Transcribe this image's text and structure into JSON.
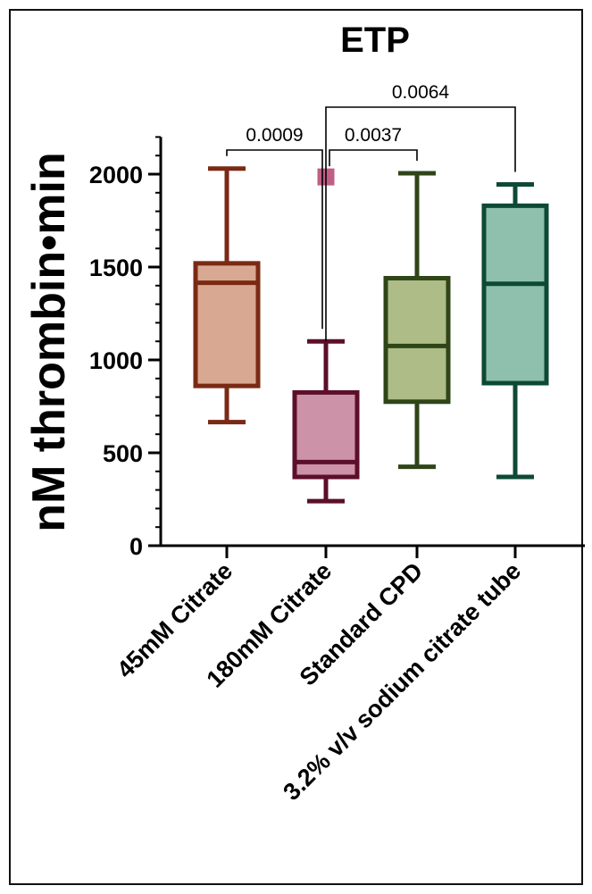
{
  "chart_data": {
    "type": "box",
    "title": "ETP",
    "xlabel": "",
    "ylabel": "nM thrombin•min",
    "ylim": [
      0,
      2200
    ],
    "yticks": [
      0,
      500,
      1000,
      1500,
      2000
    ],
    "grid": false,
    "categories": [
      "45mM Citrate",
      "180mM Citrate",
      "Standard CPD",
      "3.2% v/v sodium citrate tube"
    ],
    "boxes": [
      {
        "category": "45mM Citrate",
        "min": 665,
        "q1": 860,
        "median": 1415,
        "q3": 1520,
        "max": 2030,
        "outliers": [],
        "fill": "#d9a892",
        "stroke": "#7a2a14"
      },
      {
        "category": "180mM Citrate",
        "min": 240,
        "q1": 370,
        "median": 450,
        "q3": 825,
        "max": 1100,
        "outliers": [
          1985
        ],
        "fill": "#cc92a8",
        "stroke": "#5c0f2a"
      },
      {
        "category": "Standard CPD",
        "min": 425,
        "q1": 775,
        "median": 1075,
        "q3": 1440,
        "max": 2005,
        "outliers": [],
        "fill": "#aebc88",
        "stroke": "#2f4518"
      },
      {
        "category": "3.2% v/v sodium citrate tube",
        "min": 370,
        "q1": 875,
        "median": 1410,
        "q3": 1830,
        "max": 1945,
        "outliers": [],
        "fill": "#8fc0ad",
        "stroke": "#0d4a35"
      }
    ],
    "comparisons": [
      {
        "from": "45mM Citrate",
        "to": "180mM Citrate",
        "p": "0.0009"
      },
      {
        "from": "180mM Citrate",
        "to": "Standard CPD",
        "p": "0.0037"
      },
      {
        "from": "180mM Citrate",
        "to": "3.2% v/v sodium citrate tube",
        "p": "0.0064"
      }
    ]
  }
}
